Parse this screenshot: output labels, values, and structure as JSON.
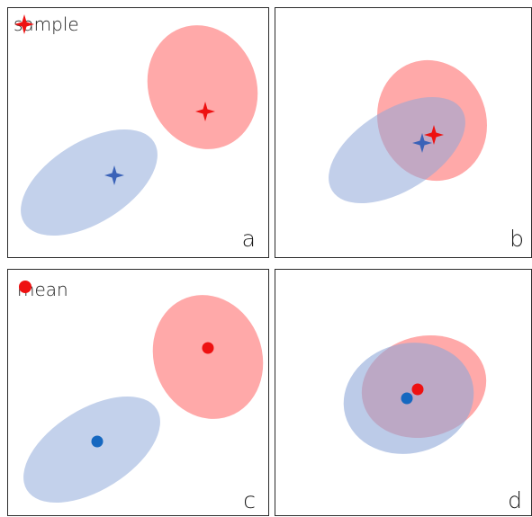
{
  "panels": [
    {
      "id": "a",
      "label": "a"
    },
    {
      "id": "b",
      "label": "b"
    },
    {
      "id": "c",
      "label": "c"
    },
    {
      "id": "d",
      "label": "d"
    }
  ],
  "legend_top": {
    "label": "sample",
    "marker": "four-point-star-icon"
  },
  "legend_bottom": {
    "label": "mean",
    "marker": "dot-icon"
  },
  "colors": {
    "red_fill": "#ff9a9a",
    "blue_fill": "#a3b9e0",
    "red_marker": "#ee1111",
    "blue_marker_star": "#3a62b8",
    "blue_marker_dot": "#1668c0",
    "border": "#2b2b2b"
  }
}
